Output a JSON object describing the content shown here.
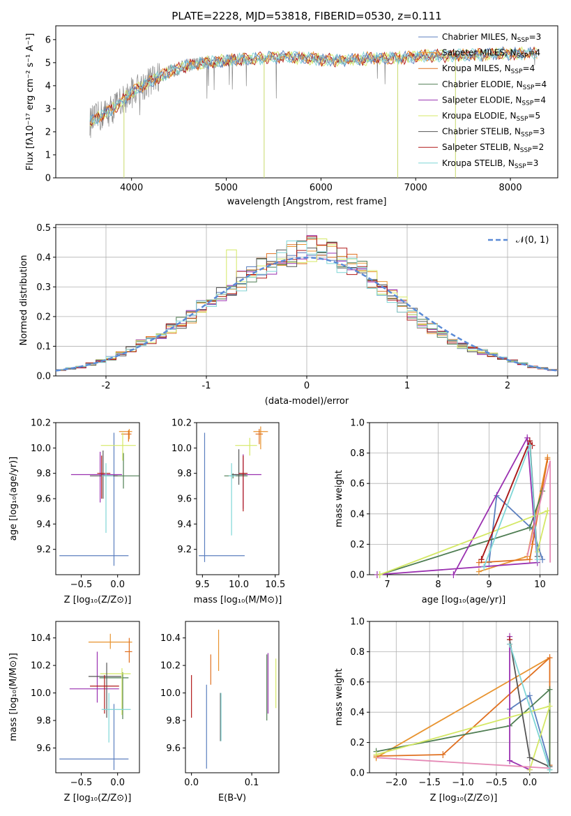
{
  "figure_title": "PLATE=2228, MJD=53818, FIBERID=0530, z=0.111",
  "models": [
    {
      "name": "Chabrier MILES",
      "nssp": "3",
      "color": "#5b7fbf"
    },
    {
      "name": "Salpeter MILES",
      "nssp": "4",
      "color": "#e8932f"
    },
    {
      "name": "Kroupa MILES",
      "nssp": "4",
      "color": "#e07020"
    },
    {
      "name": "Chabrier ELODIE",
      "nssp": "4",
      "color": "#4e7d52"
    },
    {
      "name": "Salpeter ELODIE",
      "nssp": "4",
      "color": "#9a30b0"
    },
    {
      "name": "Kroupa ELODIE",
      "nssp": "5",
      "color": "#d4e865"
    },
    {
      "name": "Chabrier STELIB",
      "nssp": "3",
      "color": "#555555"
    },
    {
      "name": "Salpeter STELIB",
      "nssp": "2",
      "color": "#b01818"
    },
    {
      "name": "Kroupa STELIB",
      "nssp": "3",
      "color": "#7fd6d6"
    }
  ],
  "chart_data": [
    {
      "id": "spectrum",
      "type": "line",
      "xlabel": "wavelength [Angstrom, rest frame]",
      "ylabel": "Flux [f",
      "xlim": [
        3200,
        8500
      ],
      "ylim": [
        0,
        6.6
      ],
      "xticks": [
        4000,
        5000,
        6000,
        7000,
        8000
      ],
      "yticks": [
        0,
        1,
        2,
        3,
        4,
        5,
        6
      ],
      "legend": "top-right",
      "x": [
        3600,
        3800,
        4000,
        4200,
        4400,
        4600,
        4800,
        5000,
        5200,
        5400,
        5600,
        5800,
        6000,
        6200,
        6400,
        6600,
        6800,
        7000,
        7200,
        7400,
        7600,
        7800,
        8000,
        8200
      ],
      "series": [
        {
          "name": "data",
          "values": [
            2.5,
            3.0,
            3.7,
            4.2,
            4.6,
            4.9,
            5.0,
            5.1,
            5.15,
            5.2,
            5.25,
            5.2,
            5.15,
            5.1,
            5.15,
            5.2,
            5.2,
            5.25,
            5.3,
            5.3,
            5.35,
            5.35,
            5.4,
            5.4
          ]
        }
      ],
      "min_spikes": [
        {
          "x": 3920,
          "y": 0.0
        },
        {
          "x": 5400,
          "y": 0.0
        },
        {
          "x": 6810,
          "y": 0.0
        },
        {
          "x": 7420,
          "y": 0.0
        }
      ]
    },
    {
      "id": "residuals",
      "type": "line",
      "xlabel": "(data-model)/error",
      "ylabel": "Normed distribution",
      "xlim": [
        -2.5,
        2.5
      ],
      "ylim": [
        0,
        0.51
      ],
      "xticks": [
        -2,
        -1,
        0,
        1,
        2
      ],
      "yticks": [
        0.0,
        0.1,
        0.2,
        0.3,
        0.4,
        0.5
      ],
      "grid": true,
      "legend": "top-right",
      "legend_entry": "𝒩(0, 1)",
      "bin_centers": [
        -2.45,
        -2.35,
        -2.25,
        -2.15,
        -2.05,
        -1.95,
        -1.85,
        -1.75,
        -1.65,
        -1.55,
        -1.45,
        -1.35,
        -1.25,
        -1.15,
        -1.05,
        -0.95,
        -0.85,
        -0.75,
        -0.65,
        -0.55,
        -0.45,
        -0.35,
        -0.25,
        -0.15,
        -0.05,
        0.05,
        0.15,
        0.25,
        0.35,
        0.45,
        0.55,
        0.65,
        0.75,
        0.85,
        0.95,
        1.05,
        1.15,
        1.25,
        1.35,
        1.45,
        1.55,
        1.65,
        1.75,
        1.85,
        1.95,
        2.05,
        2.15,
        2.25,
        2.35,
        2.45
      ],
      "hist_mean": [
        0.02,
        0.025,
        0.03,
        0.04,
        0.05,
        0.06,
        0.075,
        0.09,
        0.11,
        0.12,
        0.14,
        0.16,
        0.18,
        0.2,
        0.23,
        0.25,
        0.28,
        0.3,
        0.32,
        0.34,
        0.36,
        0.38,
        0.39,
        0.41,
        0.42,
        0.43,
        0.42,
        0.41,
        0.39,
        0.37,
        0.35,
        0.33,
        0.3,
        0.27,
        0.24,
        0.21,
        0.18,
        0.16,
        0.14,
        0.12,
        0.1,
        0.09,
        0.08,
        0.07,
        0.06,
        0.05,
        0.04,
        0.03,
        0.025,
        0.02
      ]
    },
    {
      "id": "age_vs_Z",
      "type": "scatter",
      "xlabel": "Z [log",
      "ylabel": "age  [log",
      "xlim": [
        -0.85,
        0.3
      ],
      "ylim": [
        9.0,
        10.2
      ],
      "xticks": [
        -0.5,
        0.0
      ],
      "yticks": [
        9.2,
        9.4,
        9.6,
        9.8,
        10.0,
        10.2
      ],
      "points": [
        {
          "model": 0,
          "x": -0.05,
          "y": 9.15,
          "xerr": [
            0.75,
            0.2
          ],
          "yerr": [
            0.08,
            0.97
          ]
        },
        {
          "model": 1,
          "x": 0.16,
          "y": 10.13,
          "xerr": [
            0.14,
            0.04
          ],
          "yerr": [
            0.06,
            0.02
          ]
        },
        {
          "model": 2,
          "x": 0.15,
          "y": 10.11,
          "xerr": [
            0.1,
            0.04
          ],
          "yerr": [
            0.06,
            0.03
          ]
        },
        {
          "model": 3,
          "x": 0.08,
          "y": 9.78,
          "xerr": [
            0.28,
            0.22
          ],
          "yerr": [
            0.1,
            0.18
          ]
        },
        {
          "model": 4,
          "x": -0.24,
          "y": 9.79,
          "xerr": [
            0.4,
            0.3
          ],
          "yerr": [
            0.22,
            0.18
          ]
        },
        {
          "model": 5,
          "x": 0.07,
          "y": 10.02,
          "xerr": [
            0.3,
            0.18
          ],
          "yerr": [
            0.12,
            0.1
          ]
        },
        {
          "model": 6,
          "x": -0.2,
          "y": 9.78,
          "xerr": [
            0.18,
            0.2
          ],
          "yerr": [
            0.18,
            0.2
          ]
        },
        {
          "model": 7,
          "x": -0.22,
          "y": 9.8,
          "xerr": [
            0.06,
            0.12
          ],
          "yerr": [
            0.2,
            0.14
          ]
        },
        {
          "model": 8,
          "x": -0.16,
          "y": 9.78,
          "xerr": [
            0.06,
            0.1
          ],
          "yerr": [
            0.45,
            0.1
          ]
        }
      ]
    },
    {
      "id": "age_vs_mass",
      "type": "scatter",
      "xlabel": "mass [log",
      "ylabel": "",
      "xlim": [
        9.42,
        10.55
      ],
      "ylim": [
        9.0,
        10.2
      ],
      "xticks": [
        9.5,
        10.0,
        10.5
      ],
      "yticks": [
        9.2,
        9.4,
        9.6,
        9.8,
        10.0,
        10.2
      ],
      "points": [
        {
          "model": 0,
          "x": 9.53,
          "y": 9.15,
          "xerr": [
            0.08,
            0.55
          ],
          "yerr": [
            0.05,
            0.97
          ]
        },
        {
          "model": 1,
          "x": 10.3,
          "y": 10.13,
          "xerr": [
            0.1,
            0.1
          ],
          "yerr": [
            0.14,
            0.04
          ]
        },
        {
          "model": 2,
          "x": 10.28,
          "y": 10.11,
          "xerr": [
            0.05,
            0.05
          ],
          "yerr": [
            0.08,
            0.04
          ]
        },
        {
          "model": 3,
          "x": 9.92,
          "y": 9.78,
          "xerr": [
            0.12,
            0.2
          ],
          "yerr": [
            0.02,
            0.02
          ]
        },
        {
          "model": 4,
          "x": 10.06,
          "y": 9.79,
          "xerr": [
            0.12,
            0.25
          ],
          "yerr": [
            0.27,
            0.16
          ]
        },
        {
          "model": 5,
          "x": 10.15,
          "y": 10.02,
          "xerr": [
            0.2,
            0.1
          ],
          "yerr": [
            0.08,
            0.06
          ]
        },
        {
          "model": 6,
          "x": 10.0,
          "y": 9.79,
          "xerr": [
            0.1,
            0.1
          ],
          "yerr": [
            0.08,
            0.2
          ]
        },
        {
          "model": 7,
          "x": 10.06,
          "y": 9.8,
          "xerr": [
            0.06,
            0.06
          ],
          "yerr": [
            0.3,
            0.14
          ]
        },
        {
          "model": 8,
          "x": 9.9,
          "y": 9.78,
          "xerr": [
            0.04,
            0.06
          ],
          "yerr": [
            0.47,
            0.1
          ]
        }
      ]
    },
    {
      "id": "massweight_vs_age",
      "type": "line",
      "xlabel": "age  [log",
      "ylabel": "mass weight",
      "xlim": [
        6.65,
        10.35
      ],
      "ylim": [
        0,
        1.0
      ],
      "xticks": [
        7,
        8,
        9,
        10
      ],
      "yticks": [
        0.0,
        0.2,
        0.4,
        0.6,
        0.8,
        1.0
      ],
      "grid": true,
      "series": [
        {
          "model": 0,
          "x": [
            9.0,
            9.15,
            9.85,
            10.05
          ],
          "y": [
            0.08,
            0.52,
            0.3,
            0.1
          ]
        },
        {
          "model": 1,
          "x": [
            8.8,
            9.75,
            10.15
          ],
          "y": [
            0.02,
            0.12,
            0.77
          ]
        },
        {
          "model": 2,
          "x": [
            8.8,
            9.8,
            10.15,
            9.85
          ],
          "y": [
            0.08,
            0.1,
            0.76,
            0.2
          ]
        },
        {
          "model": 3,
          "x": [
            6.85,
            9.8,
            10.05
          ],
          "y": [
            0.0,
            0.31,
            0.55
          ]
        },
        {
          "model": 4,
          "x": [
            8.3,
            9.75,
            9.95,
            6.8
          ],
          "y": [
            0.0,
            0.9,
            0.08,
            0.0
          ]
        },
        {
          "model": 5,
          "x": [
            6.85,
            10.15,
            9.95
          ],
          "y": [
            0.0,
            0.42,
            0.15
          ]
        },
        {
          "model": 6,
          "x": [
            8.85,
            9.8,
            9.95
          ],
          "y": [
            0.1,
            0.88,
            0.12
          ]
        },
        {
          "model": 7,
          "x": [
            8.85,
            9.8,
            9.85
          ],
          "y": [
            0.1,
            0.88,
            0.85
          ]
        },
        {
          "model": 8,
          "x": [
            8.9,
            9.8,
            9.95
          ],
          "y": [
            0.05,
            0.85,
            0.1
          ]
        }
      ],
      "pinkline": {
        "x": [
          9.75,
          10.2,
          10.2
        ],
        "y": [
          0.12,
          0.75,
          0.08
        ]
      }
    },
    {
      "id": "mass_vs_Z",
      "type": "scatter",
      "xlabel": "Z [log",
      "ylabel": "mass [log",
      "xlim": [
        -0.85,
        0.3
      ],
      "ylim": [
        9.42,
        10.52
      ],
      "xticks": [
        -0.5,
        0.0
      ],
      "yticks": [
        9.6,
        9.8,
        10.0,
        10.2,
        10.4
      ],
      "points": [
        {
          "model": 0,
          "x": -0.05,
          "y": 9.52,
          "xerr": [
            0.75,
            0.2
          ],
          "yerr": [
            0.08,
            0.4
          ]
        },
        {
          "model": 1,
          "x": -0.1,
          "y": 10.37,
          "xerr": [
            0.3,
            0.3
          ],
          "yerr": [
            0.05,
            0.06
          ]
        },
        {
          "model": 2,
          "x": 0.16,
          "y": 10.3,
          "xerr": [
            0.06,
            0.04
          ],
          "yerr": [
            0.08,
            0.1
          ]
        },
        {
          "model": 3,
          "x": 0.07,
          "y": 10.11,
          "xerr": [
            0.32,
            0.08
          ],
          "yerr": [
            0.3,
            0.04
          ]
        },
        {
          "model": 4,
          "x": -0.28,
          "y": 10.03,
          "xerr": [
            0.38,
            0.3
          ],
          "yerr": [
            0.1,
            0.27
          ]
        },
        {
          "model": 5,
          "x": 0.06,
          "y": 10.14,
          "xerr": [
            0.3,
            0.12
          ],
          "yerr": [
            0.3,
            0.04
          ]
        },
        {
          "model": 6,
          "x": -0.15,
          "y": 10.12,
          "xerr": [
            0.25,
            0.2
          ],
          "yerr": [
            0.3,
            0.1
          ]
        },
        {
          "model": 7,
          "x": -0.18,
          "y": 10.05,
          "xerr": [
            0.2,
            0.2
          ],
          "yerr": [
            0.2,
            0.08
          ]
        },
        {
          "model": 8,
          "x": -0.12,
          "y": 9.88,
          "xerr": [
            0.1,
            0.3
          ],
          "yerr": [
            0.24,
            0.12
          ]
        }
      ]
    },
    {
      "id": "mass_vs_ebv",
      "type": "scatter",
      "xlabel": "E(B-V)",
      "ylabel": "",
      "xlim": [
        -0.01,
        0.145
      ],
      "ylim": [
        9.42,
        10.52
      ],
      "xticks": [
        0.0,
        0.1
      ],
      "yticks": [
        9.6,
        9.8,
        10.0,
        10.2,
        10.4
      ],
      "points": [
        {
          "model": 0,
          "x": 0.025,
          "y": 9.7,
          "yerr": [
            0.25,
            0.36
          ]
        },
        {
          "model": 1,
          "x": 0.045,
          "y": 10.3,
          "yerr": [
            0.14,
            0.16
          ]
        },
        {
          "model": 2,
          "x": 0.032,
          "y": 10.18,
          "yerr": [
            0.12,
            0.1
          ]
        },
        {
          "model": 3,
          "x": 0.125,
          "y": 10.0,
          "yerr": [
            0.2,
            0.28
          ]
        },
        {
          "model": 4,
          "x": 0.127,
          "y": 10.05,
          "yerr": [
            0.2,
            0.24
          ]
        },
        {
          "model": 5,
          "x": 0.14,
          "y": 10.07,
          "yerr": [
            0.18,
            0.18
          ]
        },
        {
          "model": 6,
          "x": 0.048,
          "y": 9.85,
          "yerr": [
            0.2,
            0.15
          ]
        },
        {
          "model": 7,
          "x": 0.0,
          "y": 9.97,
          "yerr": [
            0.15,
            0.16
          ]
        },
        {
          "model": 8,
          "x": 0.049,
          "y": 9.8,
          "yerr": [
            0.15,
            0.2
          ]
        }
      ]
    },
    {
      "id": "massweight_vs_Z",
      "type": "line",
      "xlabel": "Z [log",
      "ylabel": "mass weight",
      "xlim": [
        -2.4,
        0.42
      ],
      "ylim": [
        0,
        1.0
      ],
      "xticks": [
        -2.0,
        -1.5,
        -1.0,
        -0.5,
        0.0
      ],
      "yticks": [
        0.0,
        0.2,
        0.4,
        0.6,
        0.8,
        1.0
      ],
      "grid": true,
      "series": [
        {
          "model": 0,
          "x": [
            -0.3,
            0.0,
            0.3
          ],
          "y": [
            0.42,
            0.51,
            0.05
          ]
        },
        {
          "model": 1,
          "x": [
            -2.3,
            0.3
          ],
          "y": [
            0.1,
            0.76
          ]
        },
        {
          "model": 2,
          "x": [
            -2.3,
            -1.3,
            0.3,
            0.3
          ],
          "y": [
            0.11,
            0.12,
            0.76,
            0.05
          ]
        },
        {
          "model": 3,
          "x": [
            -2.3,
            -0.3,
            0.3,
            0.3
          ],
          "y": [
            0.14,
            0.31,
            0.55,
            0.02
          ]
        },
        {
          "model": 4,
          "x": [
            -0.3,
            -0.3,
            0.0
          ],
          "y": [
            0.9,
            0.08,
            0.02
          ]
        },
        {
          "model": 5,
          "x": [
            -2.3,
            0.3,
            0.0
          ],
          "y": [
            0.12,
            0.44,
            0.02
          ]
        },
        {
          "model": 6,
          "x": [
            -0.3,
            0.0,
            0.3
          ],
          "y": [
            0.88,
            0.1,
            0.04
          ]
        },
        {
          "model": 7,
          "x": [
            -0.3,
            -0.3
          ],
          "y": [
            0.88,
            0.85
          ]
        },
        {
          "model": 8,
          "x": [
            -0.3,
            0.3
          ],
          "y": [
            0.85,
            0.02
          ]
        }
      ],
      "pinkline": {
        "x": [
          -2.3,
          0.3
        ],
        "y": [
          0.1,
          0.03
        ]
      }
    }
  ]
}
